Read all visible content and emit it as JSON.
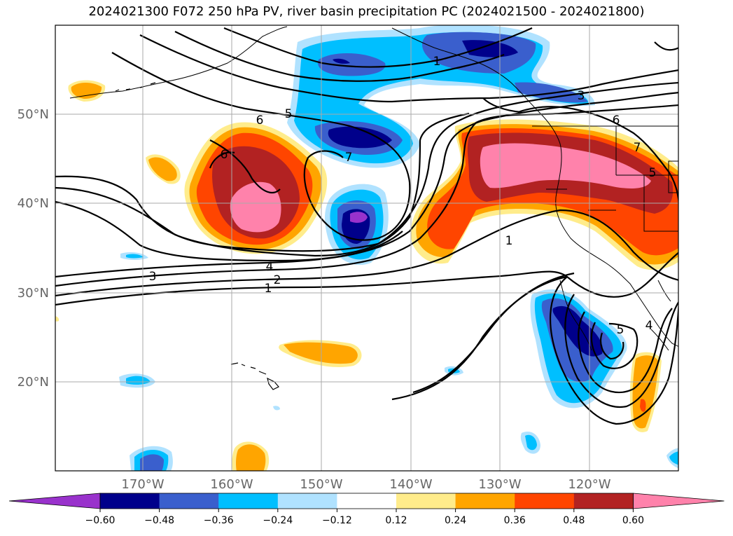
{
  "title": "2024021300 F072 250 hPa PV, river basin precipitation PC (2024021500 - 2024021800)",
  "lon_labels": [
    "170°W",
    "160°W",
    "150°W",
    "140°W",
    "130°W",
    "120°W"
  ],
  "lat_labels": [
    "50°N",
    "40°N",
    "30°N",
    "20°N"
  ],
  "contour_labels": [
    "1",
    "3",
    "6",
    "5",
    "6",
    "7",
    "7",
    "5",
    "6",
    "4",
    "3",
    "2",
    "1",
    "1",
    "5",
    "4"
  ],
  "colorbar": {
    "ticks": [
      "−0.60",
      "−0.48",
      "−0.36",
      "−0.24",
      "−0.12",
      "0.12",
      "0.24",
      "0.36",
      "0.48",
      "0.60"
    ],
    "colors": [
      "#9932cc",
      "#00008b",
      "#3a5fcd",
      "#00bfff",
      "#b0e2ff",
      "#ffffff",
      "#ffec8b",
      "#ffa500",
      "#ff4500",
      "#b22222",
      "#ff82ab"
    ]
  }
}
